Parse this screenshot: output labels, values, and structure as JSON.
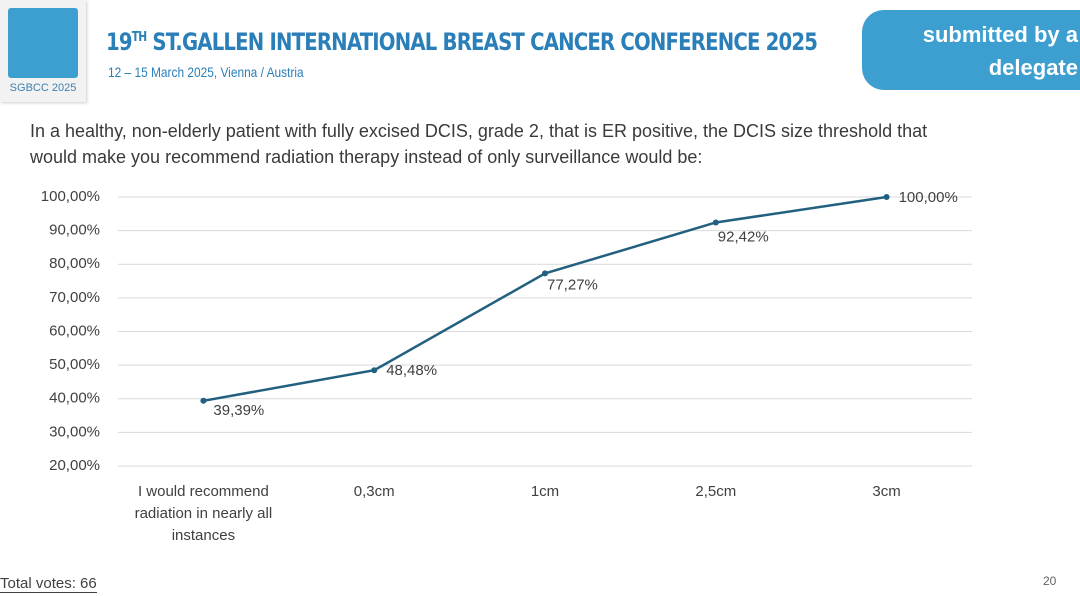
{
  "header": {
    "logo_text": "SGBCC 2025",
    "title_number": "19",
    "title_superscript": "TH",
    "title_rest": " ST.GALLEN INTERNATIONAL BREAST CANCER CONFERENCE 2025",
    "subtitle": "12 – 15 March 2025, Vienna / Austria",
    "badge": "submitted by a delegate"
  },
  "question": "In a healthy, non-elderly patient with fully excised DCIS, grade 2, that is ER positive, the DCIS size threshold that would make you recommend radiation therapy instead of only surveillance would be:",
  "chart_data": {
    "type": "line",
    "categories": [
      "I would recommend radiation in nearly all instances",
      "0,3cm",
      "1cm",
      "2,5cm",
      "3cm"
    ],
    "values": [
      39.39,
      48.48,
      77.27,
      92.42,
      100
    ],
    "value_labels": [
      "39,39%",
      "48,48%",
      "77,27%",
      "92,42%",
      "100,00%"
    ],
    "color": "#22607f",
    "ylim": [
      20,
      100
    ],
    "yticks": [
      {
        "value": 20,
        "label": "20,00%"
      },
      {
        "value": 30,
        "label": "30,00%"
      },
      {
        "value": 40,
        "label": "40,00%"
      },
      {
        "value": 50,
        "label": "50,00%"
      },
      {
        "value": 60,
        "label": "60,00%"
      },
      {
        "value": 70,
        "label": "70,00%"
      },
      {
        "value": 80,
        "label": "80,00%"
      },
      {
        "value": 90,
        "label": "90,00%"
      },
      {
        "value": 100,
        "label": "100,00%"
      }
    ],
    "grid": true
  },
  "footer": {
    "votes": "Total votes: 66",
    "page_number": "20"
  }
}
